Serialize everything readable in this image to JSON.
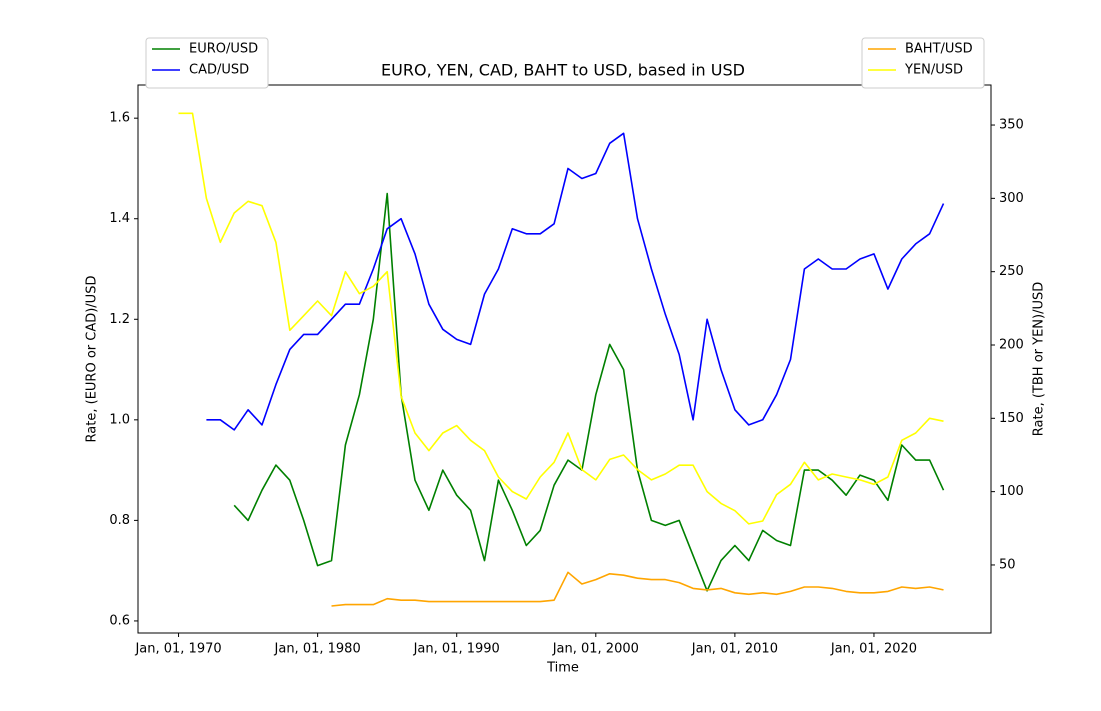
{
  "chart_data": {
    "type": "line",
    "title": "EURO, YEN, CAD, BAHT to USD, based in USD",
    "xlabel": "Time",
    "ylabel": "Rate, (EURO or CAD)/USD",
    "y2label": "Rate, (TBH or YEN)/USD",
    "x": [
      "1970-01-01",
      "1971-01-01",
      "1972-01-01",
      "1973-01-01",
      "1974-01-01",
      "1975-01-01",
      "1976-01-01",
      "1977-01-01",
      "1978-01-01",
      "1979-01-01",
      "1980-01-01",
      "1981-01-01",
      "1982-01-01",
      "1983-01-01",
      "1984-01-01",
      "1985-01-01",
      "1986-01-01",
      "1987-01-01",
      "1988-01-01",
      "1989-01-01",
      "1990-01-01",
      "1991-01-01",
      "1992-01-01",
      "1993-01-01",
      "1994-01-01",
      "1995-01-01",
      "1996-01-01",
      "1997-01-01",
      "1998-01-01",
      "1999-01-01",
      "2000-01-01",
      "2001-01-01",
      "2002-01-01",
      "2003-01-01",
      "2004-01-01",
      "2005-01-01",
      "2006-01-01",
      "2007-01-01",
      "2008-01-01",
      "2009-01-01",
      "2010-01-01",
      "2011-01-01",
      "2012-01-01",
      "2013-01-01",
      "2014-01-01",
      "2015-01-01",
      "2016-01-01",
      "2017-01-01",
      "2018-01-01",
      "2019-01-01",
      "2020-01-01",
      "2021-01-01",
      "2022-01-01",
      "2023-01-01",
      "2024-01-01",
      "2025-01-01"
    ],
    "series": [
      {
        "name": "EURO/USD",
        "color": "#008000",
        "axis": "y",
        "legend": "left",
        "values": [
          null,
          null,
          null,
          null,
          0.83,
          0.8,
          0.86,
          0.91,
          0.88,
          0.8,
          0.71,
          0.72,
          0.95,
          1.05,
          1.2,
          1.45,
          1.05,
          0.88,
          0.82,
          0.9,
          0.85,
          0.82,
          0.72,
          0.88,
          0.82,
          0.75,
          0.78,
          0.87,
          0.92,
          0.9,
          1.05,
          1.15,
          1.1,
          0.9,
          0.8,
          0.79,
          0.8,
          0.73,
          0.66,
          0.72,
          0.75,
          0.72,
          0.78,
          0.76,
          0.75,
          0.9,
          0.9,
          0.88,
          0.85,
          0.89,
          0.88,
          0.84,
          0.95,
          0.92,
          0.92,
          0.86
        ]
      },
      {
        "name": "CAD/USD",
        "color": "#0000ff",
        "axis": "y",
        "legend": "left",
        "values": [
          null,
          null,
          1.0,
          1.0,
          0.98,
          1.02,
          0.99,
          1.07,
          1.14,
          1.17,
          1.17,
          1.2,
          1.23,
          1.23,
          1.3,
          1.38,
          1.4,
          1.33,
          1.23,
          1.18,
          1.16,
          1.15,
          1.25,
          1.3,
          1.38,
          1.37,
          1.37,
          1.39,
          1.5,
          1.48,
          1.49,
          1.55,
          1.57,
          1.4,
          1.3,
          1.21,
          1.13,
          1.0,
          1.2,
          1.1,
          1.02,
          0.99,
          1.0,
          1.05,
          1.12,
          1.3,
          1.32,
          1.3,
          1.3,
          1.32,
          1.33,
          1.26,
          1.32,
          1.35,
          1.37,
          1.43
        ]
      },
      {
        "name": "BAHT/USD",
        "color": "#ffa500",
        "axis": "y2",
        "legend": "right",
        "values": [
          null,
          null,
          null,
          null,
          null,
          null,
          null,
          null,
          null,
          null,
          null,
          22,
          23,
          23,
          23,
          27,
          26,
          26,
          25,
          25,
          25,
          25,
          25,
          25,
          25,
          25,
          25,
          26,
          45,
          37,
          40,
          44,
          43,
          41,
          40,
          40,
          38,
          34,
          33,
          34,
          31,
          30,
          31,
          30,
          32,
          35,
          35,
          34,
          32,
          31,
          31,
          32,
          35,
          34,
          35,
          33
        ]
      },
      {
        "name": "YEN/USD",
        "color": "#ffff00",
        "axis": "y2",
        "legend": "right",
        "values": [
          358,
          358,
          300,
          270,
          290,
          298,
          295,
          270,
          210,
          220,
          230,
          220,
          250,
          235,
          240,
          250,
          165,
          140,
          128,
          140,
          145,
          135,
          128,
          110,
          100,
          95,
          110,
          120,
          140,
          115,
          108,
          122,
          125,
          115,
          108,
          112,
          118,
          118,
          100,
          92,
          87,
          78,
          80,
          98,
          105,
          120,
          108,
          112,
          110,
          108,
          105,
          110,
          135,
          140,
          150,
          148
        ]
      }
    ],
    "xlim": [
      "1967-02-01",
      "2028-06-01"
    ],
    "xticks": [
      {
        "value": "1970-01-01",
        "label": "Jan, 01, 1970"
      },
      {
        "value": "1980-01-01",
        "label": "Jan, 01, 1980"
      },
      {
        "value": "1990-01-01",
        "label": "Jan, 01, 1990"
      },
      {
        "value": "2000-01-01",
        "label": "Jan, 01, 2000"
      },
      {
        "value": "2010-01-01",
        "label": "Jan, 01, 2010"
      },
      {
        "value": "2020-01-01",
        "label": "Jan, 01, 2020"
      }
    ],
    "ylim": [
      0.576,
      1.666
    ],
    "yticks": [
      0.6,
      0.8,
      {
        "value": 1,
        "label": "1.0"
      },
      1.2,
      1.4,
      1.6
    ],
    "y2lim": [
      3.6,
      377.3
    ],
    "y2ticks": [
      50,
      100,
      150,
      200,
      250,
      300,
      350
    ],
    "legend_left": "upper left",
    "legend_right": "upper right"
  }
}
